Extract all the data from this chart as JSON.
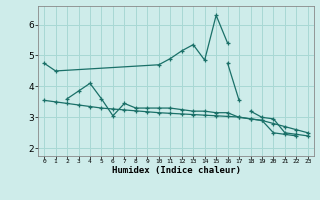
{
  "xlabel": "Humidex (Indice chaleur)",
  "background_color": "#ceecea",
  "grid_color": "#a8d8d4",
  "line_color": "#1a7068",
  "xlim": [
    -0.5,
    23.5
  ],
  "ylim": [
    1.75,
    6.6
  ],
  "yticks": [
    2,
    3,
    4,
    5,
    6
  ],
  "xtick_labels": [
    "0",
    "1",
    "2",
    "3",
    "4",
    "5",
    "6",
    "7",
    "8",
    "9",
    "10",
    "11",
    "12",
    "13",
    "14",
    "15",
    "16",
    "17",
    "18",
    "19",
    "20",
    "21",
    "22",
    "23"
  ],
  "series": [
    {
      "x": [
        0,
        1,
        10,
        11,
        12,
        13,
        14,
        15,
        16
      ],
      "y": [
        4.75,
        4.5,
        4.7,
        4.9,
        5.15,
        5.35,
        4.85,
        6.3,
        5.4
      ]
    },
    {
      "x": [
        2,
        3,
        4,
        5,
        6,
        7,
        8,
        9,
        10,
        11,
        12,
        13,
        14,
        15,
        16,
        17,
        18,
        19,
        20,
        21,
        22
      ],
      "y": [
        3.6,
        3.85,
        4.1,
        3.6,
        3.05,
        3.45,
        3.3,
        3.3,
        3.3,
        3.3,
        3.25,
        3.2,
        3.2,
        3.15,
        3.15,
        3.0,
        2.95,
        2.9,
        2.5,
        2.45,
        2.4
      ]
    },
    {
      "x": [
        16,
        17
      ],
      "y": [
        4.75,
        3.55
      ]
    },
    {
      "x": [
        18,
        19,
        20,
        21,
        22,
        23
      ],
      "y": [
        3.2,
        3.0,
        2.95,
        2.5,
        2.45,
        2.4
      ]
    },
    {
      "x": [
        0,
        1,
        2,
        3,
        4,
        5,
        6,
        7,
        8,
        9,
        10,
        11,
        12,
        13,
        14,
        15,
        16,
        17,
        18,
        19,
        20,
        21,
        22,
        23
      ],
      "y": [
        3.55,
        3.5,
        3.45,
        3.4,
        3.35,
        3.3,
        3.27,
        3.24,
        3.21,
        3.18,
        3.15,
        3.13,
        3.11,
        3.09,
        3.07,
        3.05,
        3.03,
        3.01,
        2.95,
        2.9,
        2.8,
        2.7,
        2.6,
        2.5
      ]
    }
  ]
}
